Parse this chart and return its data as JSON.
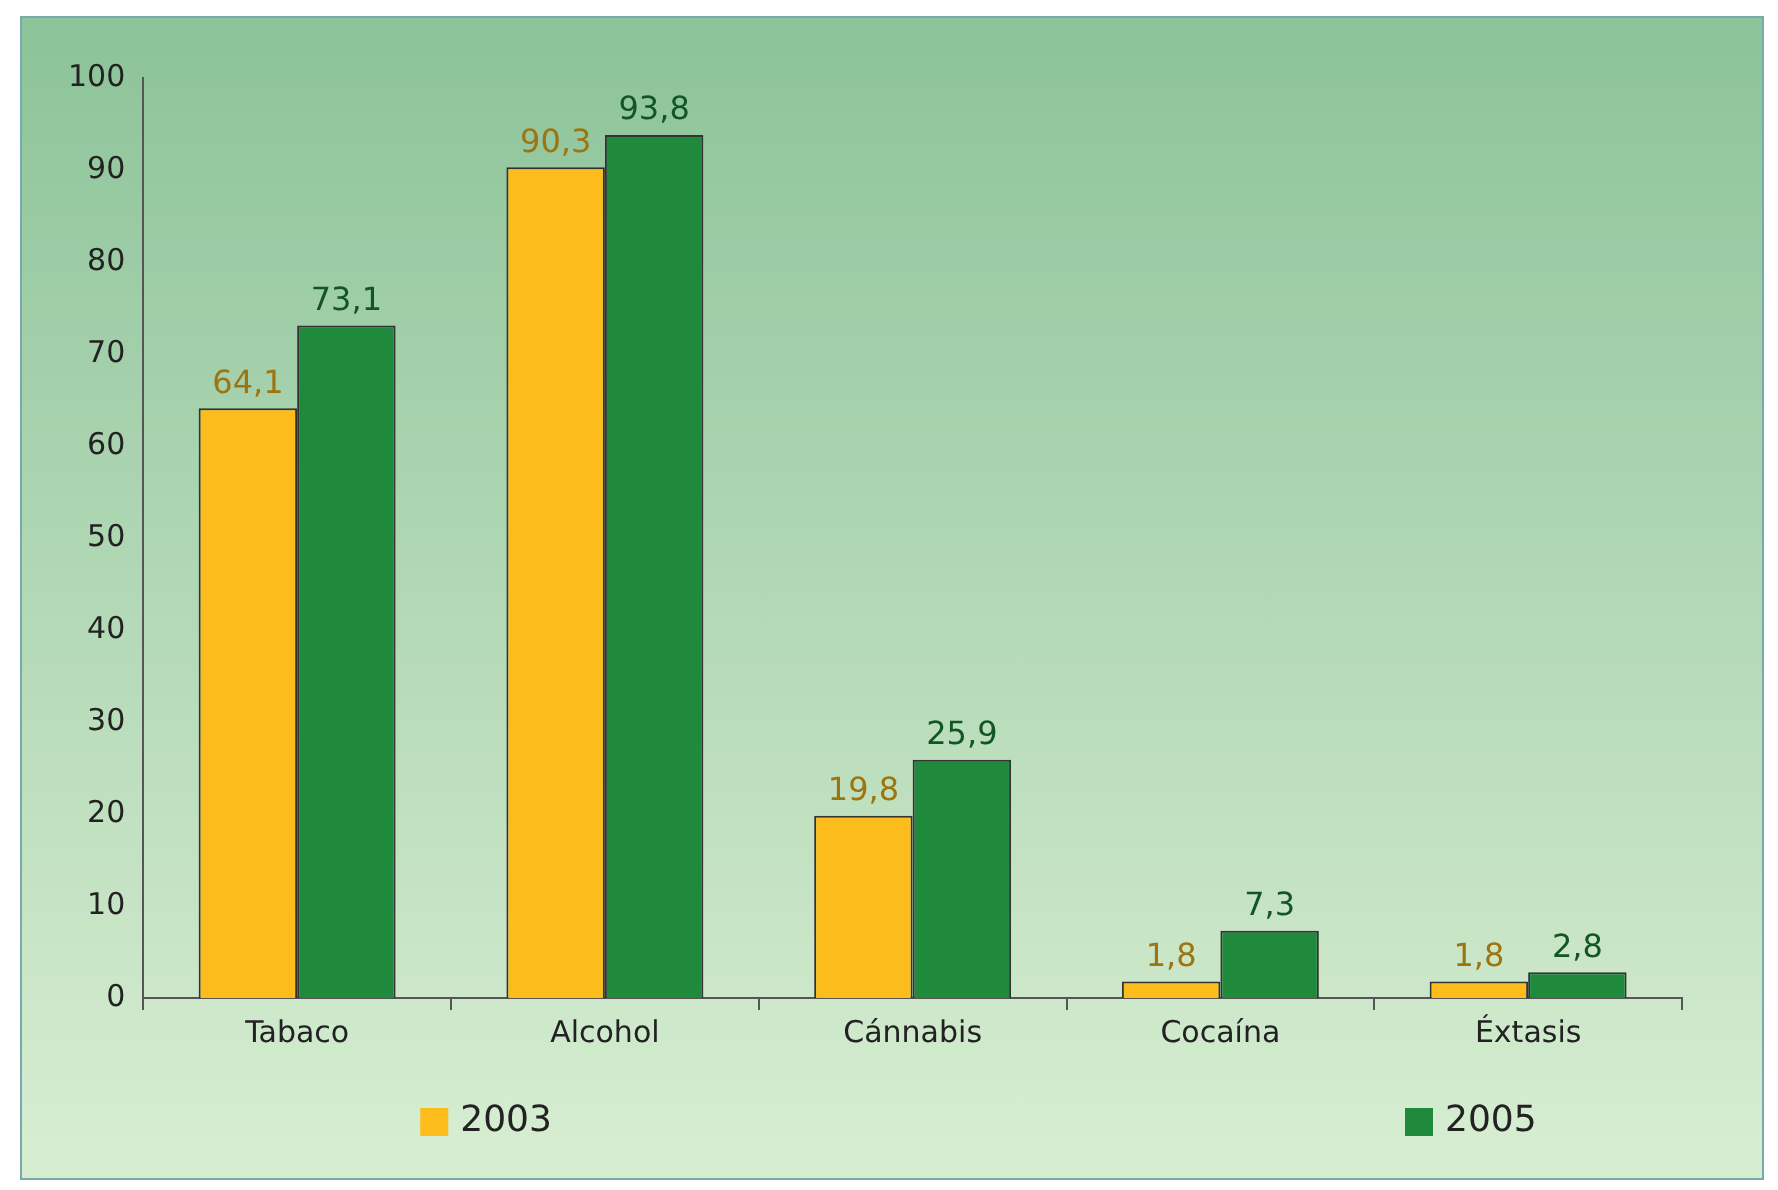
{
  "chart_data": {
    "type": "bar",
    "categories": [
      "Tabaco",
      "Alcohol",
      "Cánnabis",
      "Cocaína",
      "Éxtasis"
    ],
    "series": [
      {
        "name": "2003",
        "color": "#fbbc1c",
        "values": [
          64.1,
          90.3,
          19.8,
          1.8,
          1.8
        ],
        "value_labels": [
          "64,1",
          "90,3",
          "19,8",
          "1,8",
          "1,8"
        ]
      },
      {
        "name": "2005",
        "color": "#1f8a3c",
        "values": [
          73.1,
          93.8,
          25.9,
          7.3,
          2.8
        ],
        "value_labels": [
          "73,1",
          "93,8",
          "25,9",
          "7,3",
          "2,8"
        ]
      }
    ],
    "ylim": [
      0,
      100
    ],
    "yticks": [
      0,
      10,
      20,
      30,
      40,
      50,
      60,
      70,
      80,
      90,
      100
    ],
    "grid": false,
    "legend": "bottom"
  }
}
